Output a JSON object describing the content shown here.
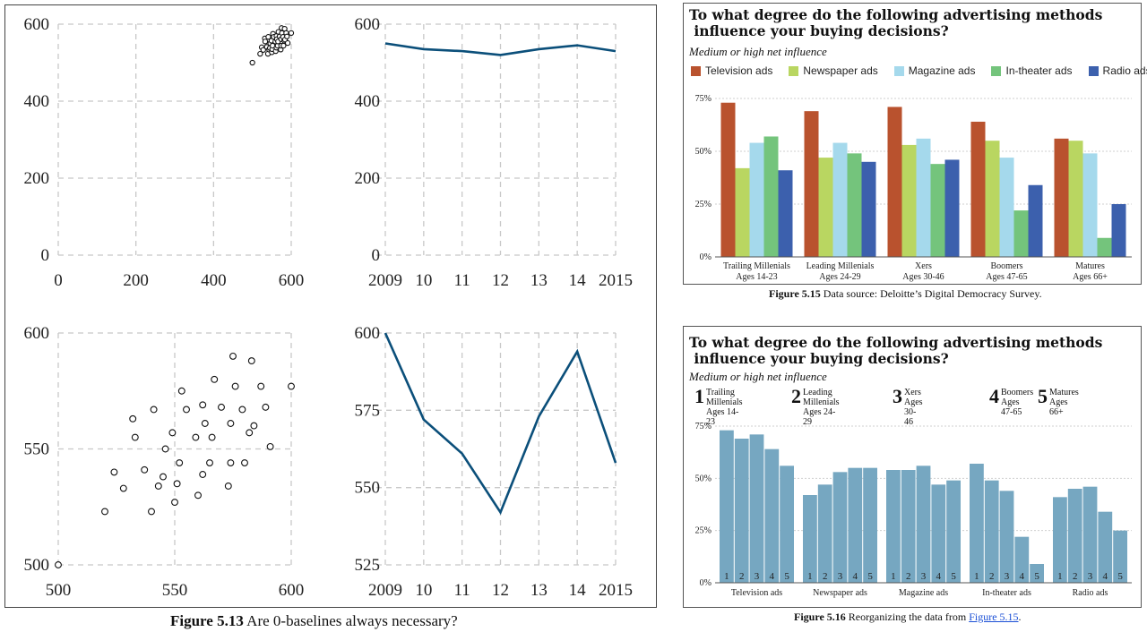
{
  "fig513": {
    "caption_bold": "Figure 5.13",
    "caption_text": " Are 0-baselines always necessary?",
    "scatter_zero_ticks_x": [
      "0",
      "200",
      "400",
      "600"
    ],
    "scatter_zero_ticks_y": [
      "600",
      "400",
      "200",
      "0"
    ],
    "scatter_zoom_ticks_x": [
      "500",
      "550",
      "600"
    ],
    "scatter_zoom_ticks_y": [
      "600",
      "550",
      "500"
    ],
    "line_zero_ticks_y": [
      "600",
      "400",
      "200",
      "0"
    ],
    "line_zoom_ticks_y": [
      "600",
      "575",
      "550",
      "525"
    ],
    "year_ticks": [
      "2009",
      "10",
      "11",
      "12",
      "13",
      "14",
      "2015"
    ]
  },
  "fig515": {
    "title_line1": "To what degree do the following advertising methods",
    "title_line2": " influence your buying decisions?",
    "subtitle": "Medium or high net influence",
    "caption_bold": "Figure 5.15",
    "caption_text": " Data source: Deloitte’s Digital Democracy Survey."
  },
  "fig516": {
    "title_line1": "To what degree do the following advertising methods",
    "title_line2": " influence your buying decisions?",
    "subtitle": "Medium or high net influence",
    "caption_bold": "Figure 5.16",
    "caption_pre": " Reorganizing the data from ",
    "caption_link": "Figure 5.15",
    "caption_post": ".",
    "bar_color": "#76a7c1",
    "bar_numbers": [
      "1",
      "2",
      "3",
      "4",
      "5"
    ],
    "groups": [
      {
        "num": "1",
        "name": "Trailing Millenials",
        "ages": "Ages 14-23"
      },
      {
        "num": "2",
        "name": "Leading Millenials",
        "ages": "Ages 24-29"
      },
      {
        "num": "3",
        "name": "Xers",
        "ages": "Ages 30-46"
      },
      {
        "num": "4",
        "name": "Boomers",
        "ages": "Ages 47-65"
      },
      {
        "num": "5",
        "name": "Matures",
        "ages": "Ages 66+"
      }
    ]
  },
  "chart_data": [
    {
      "type": "scatter",
      "title": "",
      "xlabel": "",
      "ylabel": "",
      "xlim": [
        0,
        600
      ],
      "ylim": [
        0,
        600
      ],
      "grid": true,
      "xticks": [
        0,
        200,
        400,
        600
      ],
      "yticks": [
        0,
        200,
        400,
        600
      ],
      "x": [
        500,
        520,
        524,
        528,
        532,
        533,
        537,
        540,
        541,
        543,
        545,
        546,
        549,
        550,
        551,
        552,
        553,
        555,
        559,
        560,
        562,
        562,
        563,
        565,
        566,
        567,
        570,
        573,
        574,
        574,
        575,
        576,
        579,
        580,
        582,
        583,
        584,
        587,
        589,
        591,
        600
      ],
      "y": [
        500,
        523,
        540,
        533,
        563,
        555,
        541,
        523,
        567,
        534,
        538,
        550,
        557,
        527,
        535,
        544,
        575,
        567,
        555,
        530,
        539,
        569,
        561,
        544,
        555,
        580,
        568,
        534,
        561,
        544,
        590,
        577,
        567,
        544,
        557,
        588,
        560,
        577,
        568,
        551,
        577
      ]
    },
    {
      "type": "line",
      "title": "",
      "xlim": [
        2009,
        2015
      ],
      "ylim": [
        0,
        600
      ],
      "grid": true,
      "x": [
        2009,
        2010,
        2011,
        2012,
        2013,
        2014,
        2015
      ],
      "y": [
        550,
        535,
        530,
        520,
        535,
        545,
        530
      ],
      "xticklabels": [
        "2009",
        "10",
        "11",
        "12",
        "13",
        "14",
        "2015"
      ],
      "yticks": [
        0,
        200,
        400,
        600
      ]
    },
    {
      "type": "scatter",
      "title": "",
      "xlim": [
        500,
        600
      ],
      "ylim": [
        500,
        600
      ],
      "grid": true,
      "xticks": [
        500,
        550,
        600
      ],
      "yticks": [
        500,
        550,
        600
      ],
      "x": [
        500,
        520,
        524,
        528,
        532,
        533,
        537,
        540,
        541,
        543,
        545,
        546,
        549,
        550,
        551,
        552,
        553,
        555,
        559,
        560,
        562,
        562,
        563,
        565,
        566,
        567,
        570,
        573,
        574,
        574,
        575,
        576,
        579,
        580,
        582,
        583,
        584,
        587,
        589,
        591,
        600
      ],
      "y": [
        500,
        523,
        540,
        533,
        563,
        555,
        541,
        523,
        567,
        534,
        538,
        550,
        557,
        527,
        535,
        544,
        575,
        567,
        555,
        530,
        539,
        569,
        561,
        544,
        555,
        580,
        568,
        534,
        561,
        544,
        590,
        577,
        567,
        544,
        557,
        588,
        560,
        577,
        568,
        551,
        577
      ]
    },
    {
      "type": "line",
      "title": "",
      "xlim": [
        2009,
        2015
      ],
      "ylim": [
        525,
        600
      ],
      "grid": true,
      "x": [
        2009,
        2010,
        2011,
        2012,
        2013,
        2014,
        2015
      ],
      "y": [
        600,
        572,
        561,
        542,
        573,
        594,
        558
      ],
      "xticklabels": [
        "2009",
        "10",
        "11",
        "12",
        "13",
        "14",
        "2015"
      ],
      "yticks": [
        525,
        550,
        575,
        600
      ]
    },
    {
      "type": "bar",
      "title": "To what degree do the following advertising methods influence your buying decisions?",
      "subtitle": "Medium or high net influence",
      "categories": [
        "Trailing Millenials|Ages 14-23",
        "Leading Millenials|Ages 24-29",
        "Xers|Ages 30-46",
        "Boomers|Ages 47-65",
        "Matures|Ages 66+"
      ],
      "series": [
        {
          "name": "Television ads",
          "color": "#b9522e",
          "values": [
            73,
            69,
            71,
            64,
            56
          ]
        },
        {
          "name": "Newspaper ads",
          "color": "#b9d661",
          "values": [
            42,
            47,
            53,
            55,
            55
          ]
        },
        {
          "name": "Magazine ads",
          "color": "#a5d9ec",
          "values": [
            54,
            54,
            56,
            47,
            49
          ]
        },
        {
          "name": "In-theater ads",
          "color": "#74c47c",
          "values": [
            57,
            49,
            44,
            22,
            9
          ]
        },
        {
          "name": "Radio ads",
          "color": "#3c60ad",
          "values": [
            41,
            45,
            46,
            34,
            25
          ]
        }
      ],
      "yticks": [
        "0%",
        "25%",
        "50%",
        "75%"
      ],
      "ylim": [
        0,
        80
      ],
      "legend": "top"
    },
    {
      "type": "bar",
      "title": "To what degree do the following advertising methods influence your buying decisions?",
      "subtitle": "Medium or high net influence",
      "categories": [
        "Television ads",
        "Newspaper ads",
        "Magazine ads",
        "In-theater ads",
        "Radio ads"
      ],
      "series": [
        {
          "name": "1 Trailing Millenials",
          "values": [
            73,
            42,
            54,
            57,
            41
          ]
        },
        {
          "name": "2 Leading Millenials",
          "values": [
            69,
            47,
            54,
            49,
            45
          ]
        },
        {
          "name": "3 Xers",
          "values": [
            71,
            53,
            56,
            44,
            46
          ]
        },
        {
          "name": "4 Boomers",
          "values": [
            64,
            55,
            47,
            22,
            34
          ]
        },
        {
          "name": "5 Matures",
          "values": [
            56,
            55,
            49,
            9,
            25
          ]
        }
      ],
      "yticks": [
        "0%",
        "25%",
        "50%",
        "75%"
      ],
      "ylim": [
        0,
        80
      ]
    }
  ]
}
